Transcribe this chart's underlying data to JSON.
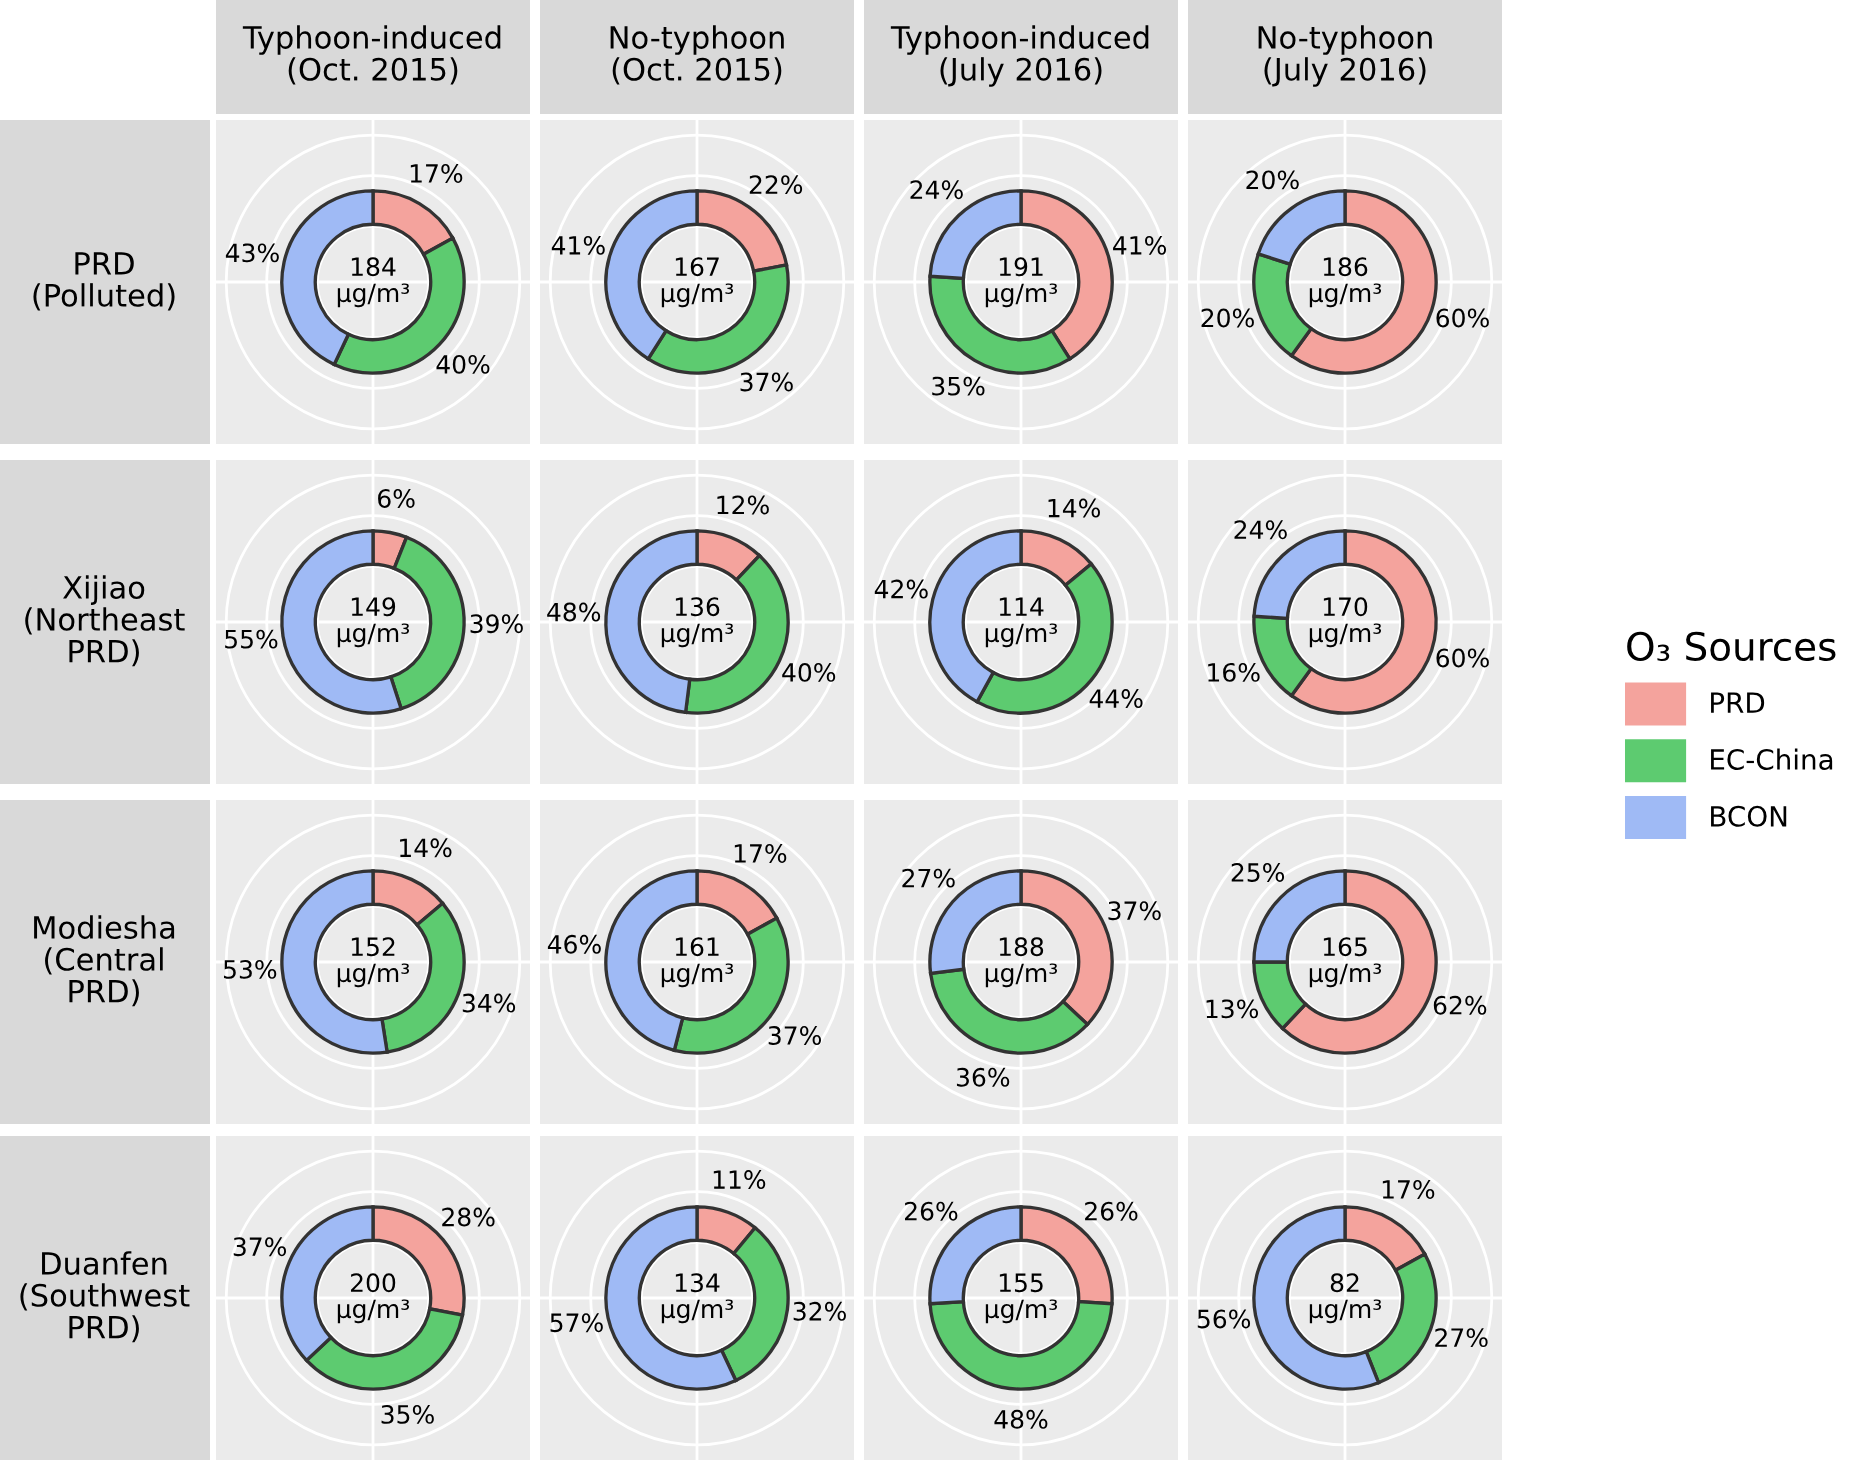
{
  "chart_data": [
    {
      "type": "donut",
      "title": "Typhoon-induced\n(Oct. 2015)",
      "ylabel": "PRD\n(Polluted)",
      "categories": [
        null,
        null,
        null
      ],
      "values": [
        17,
        40,
        43
      ],
      "value_labels": [
        "17%",
        "40%",
        "43%"
      ],
      "colors": [
        "#f4a39d",
        "#5dcb70",
        "#9fbaf5"
      ],
      "annotations": [
        "184\nμg/m³"
      ],
      "grid": true
    },
    {
      "type": "donut",
      "title": "No-typhoon\n(Oct. 2015)",
      "categories": [
        null,
        null,
        null
      ],
      "values": [
        22,
        37,
        41
      ],
      "value_labels": [
        "22%",
        "37%",
        "41%"
      ],
      "colors": [
        "#f4a39d",
        "#5dcb70",
        "#9fbaf5"
      ],
      "annotations": [
        "167\nμg/m³"
      ],
      "grid": true
    },
    {
      "type": "donut",
      "title": "Typhoon-induced\n(July 2016)",
      "categories": [
        null,
        null,
        null
      ],
      "values": [
        41,
        35,
        24
      ],
      "value_labels": [
        "41%",
        "35%",
        "24%"
      ],
      "colors": [
        "#f4a39d",
        "#5dcb70",
        "#9fbaf5"
      ],
      "annotations": [
        "191\nμg/m³"
      ],
      "grid": true
    },
    {
      "type": "donut",
      "title": "No-typhoon\n(July 2016)",
      "categories": [
        null,
        null,
        null
      ],
      "values": [
        60,
        20,
        20
      ],
      "value_labels": [
        "60%",
        "20%",
        "20%"
      ],
      "colors": [
        "#f4a39d",
        "#5dcb70",
        "#9fbaf5"
      ],
      "annotations": [
        "186\nμg/m³"
      ],
      "grid": true
    },
    {
      "type": "donut",
      "ylabel": "Xijiao\n(Northeast\nPRD)",
      "categories": [
        null,
        null,
        null
      ],
      "values": [
        6,
        39,
        55
      ],
      "value_labels": [
        "6%",
        "39%",
        "55%"
      ],
      "colors": [
        "#f4a39d",
        "#5dcb70",
        "#9fbaf5"
      ],
      "annotations": [
        "149\nμg/m³"
      ],
      "grid": true
    },
    {
      "type": "donut",
      "categories": [
        null,
        null,
        null
      ],
      "values": [
        12,
        40,
        48
      ],
      "value_labels": [
        "12%",
        "40%",
        "48%"
      ],
      "colors": [
        "#f4a39d",
        "#5dcb70",
        "#9fbaf5"
      ],
      "annotations": [
        "136\nμg/m³"
      ],
      "grid": true
    },
    {
      "type": "donut",
      "categories": [
        null,
        null,
        null
      ],
      "values": [
        14,
        44,
        42
      ],
      "value_labels": [
        "14%",
        "44%",
        "42%"
      ],
      "colors": [
        "#f4a39d",
        "#5dcb70",
        "#9fbaf5"
      ],
      "annotations": [
        "114\nμg/m³"
      ],
      "grid": true
    },
    {
      "type": "donut",
      "categories": [
        "PRD",
        "EC-China",
        "BCON"
      ],
      "values": [
        60,
        16,
        24
      ],
      "value_labels": [
        "60%",
        "16%",
        "24%"
      ],
      "colors": [
        "#f4a39d",
        "#5dcb70",
        "#9fbaf5"
      ],
      "annotations": [
        "170\nμg/m³"
      ],
      "grid": true,
      "legend": "right",
      "legend_title": "O₃ Sources"
    },
    {
      "type": "donut",
      "ylabel": "Modiesha\n(Central\nPRD)",
      "categories": [
        null,
        null,
        null
      ],
      "values": [
        14,
        34,
        53
      ],
      "value_labels": [
        "14%",
        "34%",
        "53%"
      ],
      "colors": [
        "#f4a39d",
        "#5dcb70",
        "#9fbaf5"
      ],
      "annotations": [
        "152\nμg/m³"
      ],
      "grid": true
    },
    {
      "type": "donut",
      "categories": [
        null,
        null,
        null
      ],
      "values": [
        17,
        37,
        46
      ],
      "value_labels": [
        "17%",
        "37%",
        "46%"
      ],
      "colors": [
        "#f4a39d",
        "#5dcb70",
        "#9fbaf5"
      ],
      "annotations": [
        "161\nμg/m³"
      ],
      "grid": true
    },
    {
      "type": "donut",
      "categories": [
        null,
        null,
        null
      ],
      "values": [
        37,
        36,
        27
      ],
      "value_labels": [
        "37%",
        "36%",
        "27%"
      ],
      "colors": [
        "#f4a39d",
        "#5dcb70",
        "#9fbaf5"
      ],
      "annotations": [
        "188\nμg/m³"
      ],
      "grid": true
    },
    {
      "type": "donut",
      "categories": [
        null,
        null,
        null
      ],
      "values": [
        62,
        13,
        25
      ],
      "value_labels": [
        "62%",
        "13%",
        "25%"
      ],
      "colors": [
        "#f4a39d",
        "#5dcb70",
        "#9fbaf5"
      ],
      "annotations": [
        "165\nμg/m³"
      ],
      "grid": true
    },
    {
      "type": "donut",
      "ylabel": "Duanfen\n(Southwest\nPRD)",
      "categories": [
        null,
        null,
        null
      ],
      "values": [
        28,
        35,
        37
      ],
      "value_labels": [
        "28%",
        "35%",
        "37%"
      ],
      "colors": [
        "#f4a39d",
        "#5dcb70",
        "#9fbaf5"
      ],
      "annotations": [
        "200\nμg/m³"
      ],
      "grid": true
    },
    {
      "type": "donut",
      "categories": [
        null,
        null,
        null
      ],
      "values": [
        11,
        32,
        57
      ],
      "value_labels": [
        "11%",
        "32%",
        "57%"
      ],
      "colors": [
        "#f4a39d",
        "#5dcb70",
        "#9fbaf5"
      ],
      "annotations": [
        "134\nμg/m³"
      ],
      "grid": true
    },
    {
      "type": "donut",
      "categories": [
        null,
        null,
        null
      ],
      "values": [
        26,
        48,
        26
      ],
      "value_labels": [
        "26%",
        "48%",
        "26%"
      ],
      "colors": [
        "#f4a39d",
        "#5dcb70",
        "#9fbaf5"
      ],
      "annotations": [
        "155\nμg/m³"
      ],
      "grid": true
    },
    {
      "type": "donut",
      "categories": [
        null,
        null,
        null
      ],
      "values": [
        17,
        27,
        56
      ],
      "value_labels": [
        "17%",
        "27%",
        "56%"
      ],
      "colors": [
        "#f4a39d",
        "#5dcb70",
        "#9fbaf5"
      ],
      "annotations": [
        "82\nμg/m³"
      ],
      "grid": true
    }
  ]
}
